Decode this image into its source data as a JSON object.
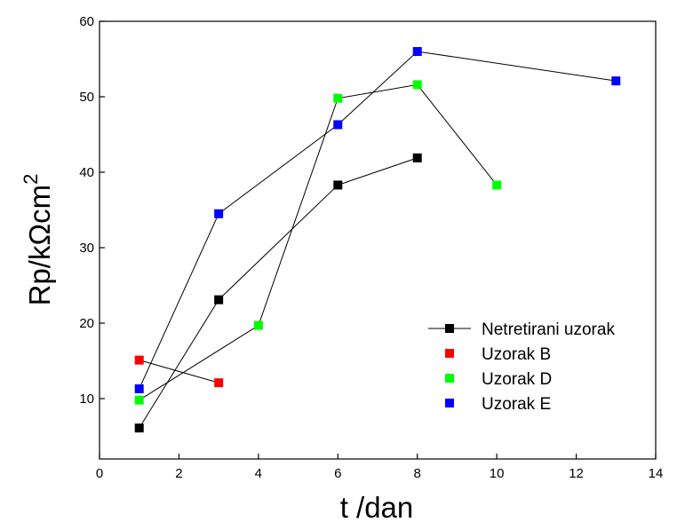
{
  "chart_data": {
    "type": "scatter",
    "title": "",
    "xlabel": "t /dan",
    "ylabel_base": "Rp/kΩcm",
    "ylabel_sup": "2",
    "xlim": [
      0,
      14
    ],
    "ylim": [
      2,
      60
    ],
    "xticks": [
      0,
      2,
      4,
      6,
      8,
      10,
      12,
      14
    ],
    "yticks": [
      10,
      20,
      30,
      40,
      50,
      60
    ],
    "grid": false,
    "legend_position": "bottom-right",
    "series": [
      {
        "name": "Netretirani uzorak",
        "color": "#000000",
        "connected": true,
        "x": [
          1,
          3,
          6,
          8
        ],
        "y": [
          6.1,
          23.1,
          38.3,
          41.9
        ]
      },
      {
        "name": "Uzorak B",
        "color": "#ff0000",
        "connected": true,
        "x": [
          1,
          3
        ],
        "y": [
          15.1,
          12.1
        ]
      },
      {
        "name": "Uzorak D",
        "color": "#00ff00",
        "connected": true,
        "x": [
          1,
          4,
          6,
          8,
          10
        ],
        "y": [
          9.8,
          19.7,
          49.8,
          51.6,
          38.3
        ]
      },
      {
        "name": "Uzorak E",
        "color": "#0000ff",
        "connected": true,
        "x": [
          1,
          3,
          6,
          8,
          13
        ],
        "y": [
          11.3,
          34.5,
          46.3,
          56.0,
          52.1
        ]
      }
    ]
  }
}
